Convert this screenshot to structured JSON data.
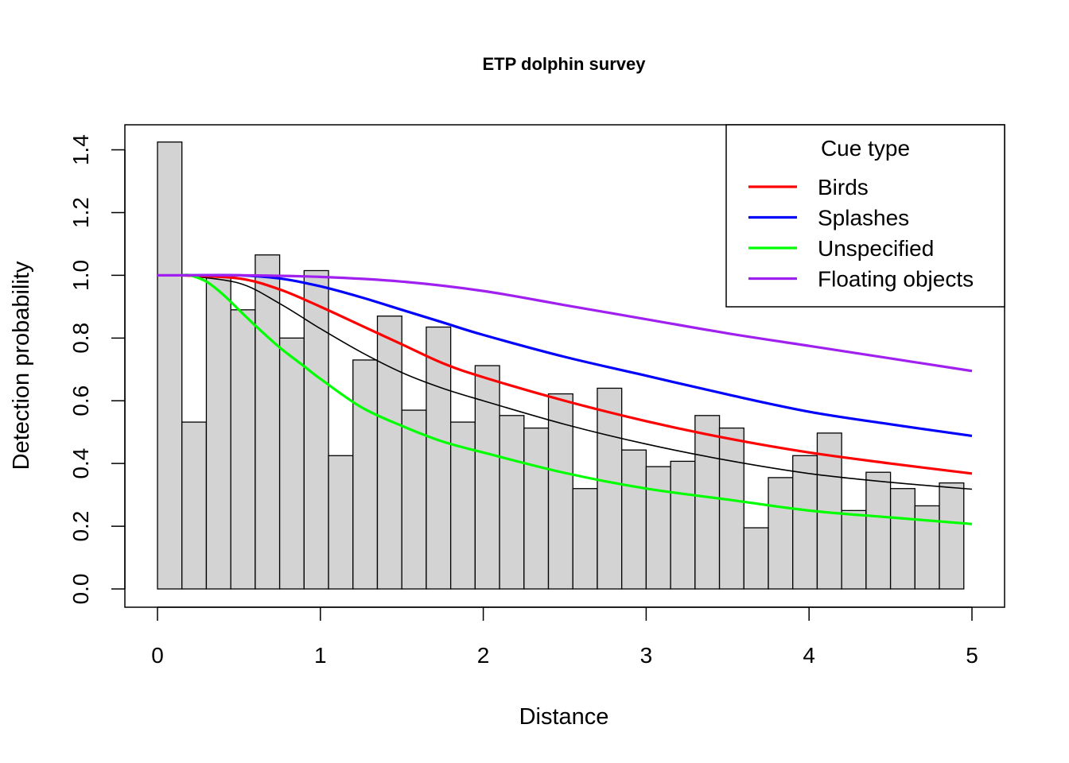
{
  "chart_data": {
    "type": "bar",
    "title": "ETP dolphin survey",
    "xlabel": "Distance",
    "ylabel": "Detection probability",
    "xlim": [
      0,
      5
    ],
    "ylim": [
      0,
      1.4
    ],
    "x_ticks": [
      "0",
      "1",
      "2",
      "3",
      "4",
      "5"
    ],
    "y_ticks": [
      "0.0",
      "0.2",
      "0.4",
      "0.6",
      "0.8",
      "1.0",
      "1.2",
      "1.4"
    ],
    "histogram": {
      "bin_width": 0.15,
      "bins_start": 0,
      "values": [
        1.425,
        0.532,
        1.0,
        0.89,
        1.065,
        0.8,
        1.015,
        0.425,
        0.73,
        0.87,
        0.57,
        0.835,
        0.532,
        0.712,
        0.553,
        0.513,
        0.622,
        0.32,
        0.64,
        0.443,
        0.39,
        0.407,
        0.553,
        0.513,
        0.195,
        0.355,
        0.425,
        0.497,
        0.25,
        0.372,
        0.32,
        0.265,
        0.338
      ],
      "fill": "#d3d3d3"
    },
    "average_curve": {
      "x": [
        0.15,
        0.5,
        0.75,
        1.0,
        1.25,
        1.5,
        1.75,
        2.0,
        2.5,
        3.0,
        3.5,
        4.0,
        4.5,
        5.0
      ],
      "y": [
        1.0,
        0.975,
        0.91,
        0.83,
        0.755,
        0.69,
        0.64,
        0.6,
        0.525,
        0.462,
        0.41,
        0.368,
        0.34,
        0.318
      ],
      "color": "#000000"
    },
    "legend": {
      "title": "Cue type",
      "position": "top-right"
    },
    "series": [
      {
        "name": "Birds",
        "color": "#ff0000",
        "x": [
          0.15,
          0.5,
          0.75,
          1.0,
          1.25,
          1.5,
          1.75,
          2.0,
          2.5,
          3.0,
          3.5,
          4.0,
          4.5,
          5.0
        ],
        "y": [
          1.0,
          0.99,
          0.955,
          0.9,
          0.84,
          0.78,
          0.72,
          0.675,
          0.6,
          0.535,
          0.48,
          0.435,
          0.4,
          0.368
        ]
      },
      {
        "name": "Splashes",
        "color": "#0000ff",
        "x": [
          0.15,
          0.5,
          0.75,
          1.0,
          1.25,
          1.5,
          1.75,
          2.0,
          2.5,
          3.0,
          3.5,
          4.0,
          4.5,
          5.0
        ],
        "y": [
          1.0,
          1.0,
          0.99,
          0.965,
          0.93,
          0.89,
          0.85,
          0.81,
          0.74,
          0.68,
          0.62,
          0.565,
          0.525,
          0.488
        ]
      },
      {
        "name": "Unspecified",
        "color": "#00ff00",
        "x": [
          0.15,
          0.2,
          0.3,
          0.4,
          0.5,
          0.6,
          0.75,
          0.9,
          1.0,
          1.25,
          1.5,
          1.75,
          2.0,
          2.5,
          3.0,
          3.5,
          4.0,
          4.5,
          5.0
        ],
        "y": [
          1.0,
          1.0,
          0.98,
          0.94,
          0.89,
          0.84,
          0.77,
          0.71,
          0.67,
          0.58,
          0.52,
          0.47,
          0.435,
          0.37,
          0.32,
          0.285,
          0.25,
          0.228,
          0.207
        ]
      },
      {
        "name": "Floating objects",
        "color": "#a020f0",
        "x": [
          0.0,
          0.5,
          1.0,
          1.5,
          2.0,
          2.5,
          3.0,
          3.5,
          4.0,
          4.5,
          5.0
        ],
        "y": [
          1.0,
          1.0,
          0.995,
          0.98,
          0.95,
          0.905,
          0.86,
          0.815,
          0.775,
          0.735,
          0.695
        ]
      }
    ]
  }
}
